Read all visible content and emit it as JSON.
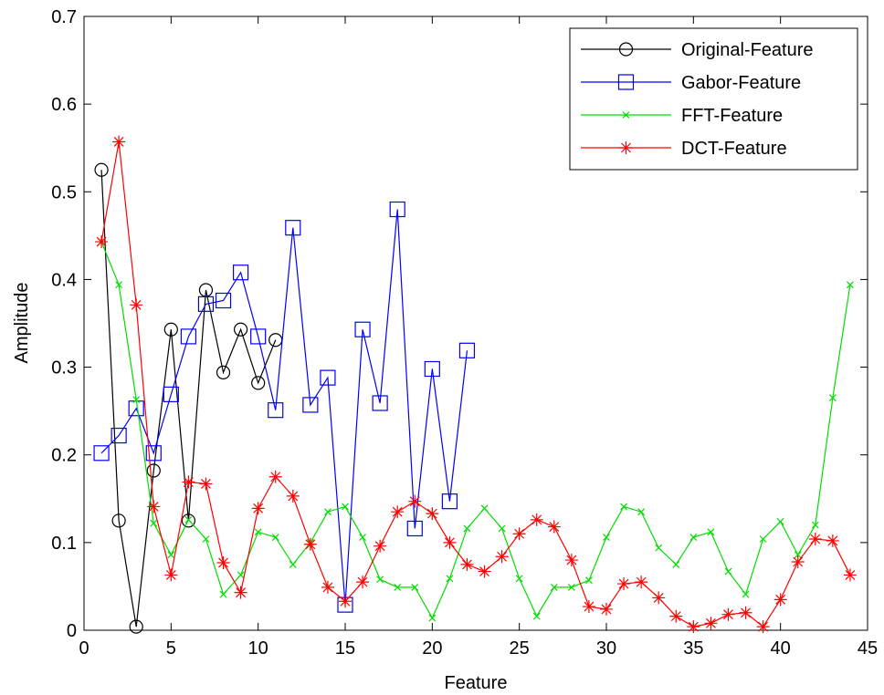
{
  "chart_data": {
    "type": "line",
    "xlabel": "Feature",
    "ylabel": "Amplitude",
    "xlim": [
      0,
      45
    ],
    "ylim": [
      0,
      0.7
    ],
    "xticks": [
      "0",
      "5",
      "10",
      "15",
      "20",
      "25",
      "30",
      "35",
      "40",
      "45"
    ],
    "yticks": [
      "0",
      "0.1",
      "0.2",
      "0.3",
      "0.4",
      "0.5",
      "0.6",
      "0.7"
    ],
    "grid": false,
    "legend_position": "top-right",
    "series": [
      {
        "name": "Original-Feature",
        "color": "#000000",
        "marker": "circle",
        "x": [
          1,
          2,
          3,
          4,
          5,
          6,
          7,
          8,
          9,
          10,
          11
        ],
        "values": [
          0.525,
          0.125,
          0.004,
          0.182,
          0.343,
          0.125,
          0.388,
          0.294,
          0.343,
          0.282,
          0.331
        ]
      },
      {
        "name": "Gabor-Feature",
        "color": "#0000ff",
        "marker": "square",
        "x": [
          1,
          2,
          3,
          4,
          5,
          6,
          7,
          8,
          9,
          10,
          11,
          12,
          13,
          14,
          15,
          16,
          17,
          18,
          19,
          20,
          21,
          22
        ],
        "values": [
          0.202,
          0.222,
          0.253,
          0.202,
          0.269,
          0.335,
          0.372,
          0.376,
          0.408,
          0.335,
          0.251,
          0.459,
          0.257,
          0.288,
          0.029,
          0.343,
          0.259,
          0.48,
          0.116,
          0.298,
          0.147,
          0.319
        ]
      },
      {
        "name": "FFT-Feature",
        "color": "#00dd00",
        "marker": "x",
        "x": [
          1,
          2,
          3,
          4,
          5,
          6,
          7,
          8,
          9,
          10,
          11,
          12,
          13,
          14,
          15,
          16,
          17,
          18,
          19,
          20,
          21,
          22,
          23,
          24,
          25,
          26,
          27,
          28,
          29,
          30,
          31,
          32,
          33,
          34,
          35,
          36,
          37,
          38,
          39,
          40,
          41,
          42,
          43,
          44
        ],
        "values": [
          0.443,
          0.394,
          0.263,
          0.122,
          0.086,
          0.126,
          0.104,
          0.041,
          0.063,
          0.112,
          0.106,
          0.075,
          0.1,
          0.135,
          0.141,
          0.106,
          0.058,
          0.049,
          0.049,
          0.014,
          0.059,
          0.116,
          0.139,
          0.116,
          0.059,
          0.016,
          0.049,
          0.049,
          0.057,
          0.106,
          0.141,
          0.135,
          0.094,
          0.075,
          0.106,
          0.112,
          0.067,
          0.041,
          0.104,
          0.124,
          0.086,
          0.12,
          0.265,
          0.394
        ]
      },
      {
        "name": "DCT-Feature",
        "color": "#ff0000",
        "marker": "star",
        "x": [
          1,
          2,
          3,
          4,
          5,
          6,
          7,
          8,
          9,
          10,
          11,
          12,
          13,
          14,
          15,
          16,
          17,
          18,
          19,
          20,
          21,
          22,
          23,
          24,
          25,
          26,
          27,
          28,
          29,
          30,
          31,
          32,
          33,
          34,
          35,
          36,
          37,
          38,
          39,
          40,
          41,
          42,
          43,
          44
        ],
        "values": [
          0.443,
          0.557,
          0.371,
          0.141,
          0.063,
          0.169,
          0.167,
          0.077,
          0.043,
          0.139,
          0.175,
          0.153,
          0.098,
          0.049,
          0.033,
          0.055,
          0.096,
          0.135,
          0.147,
          0.133,
          0.1,
          0.075,
          0.067,
          0.084,
          0.11,
          0.126,
          0.118,
          0.08,
          0.027,
          0.024,
          0.053,
          0.055,
          0.037,
          0.016,
          0.004,
          0.008,
          0.018,
          0.02,
          0.004,
          0.035,
          0.078,
          0.104,
          0.102,
          0.063
        ]
      }
    ]
  }
}
